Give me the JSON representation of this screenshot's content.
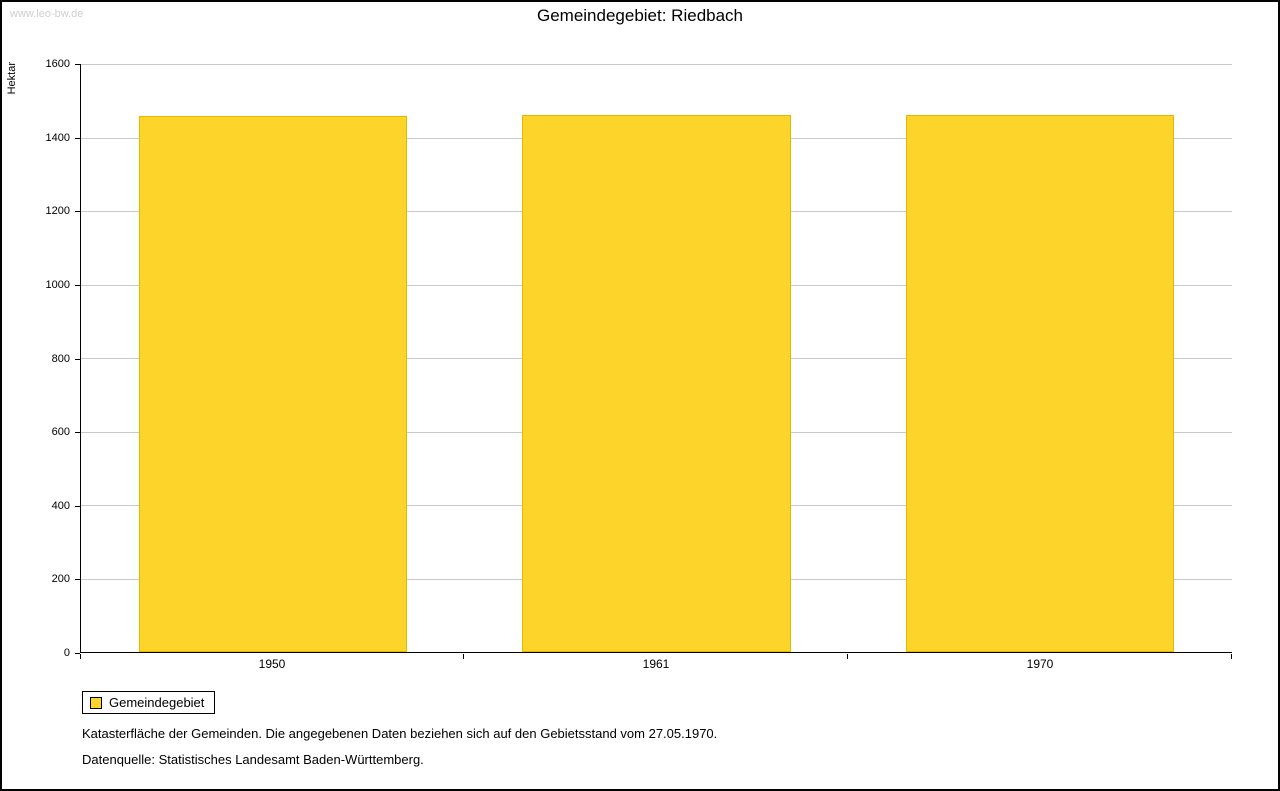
{
  "watermark": "www.leo-bw.de",
  "title": "Gemeindegebiet: Riedbach",
  "legend": {
    "label": "Gemeindegebiet"
  },
  "footer": {
    "line1": "Katasterfläche der Gemeinden. Die angegebenen Daten beziehen sich auf den Gebietsstand vom 27.05.1970.",
    "line2": "Datenquelle: Statistisches Landesamt Baden-Württemberg."
  },
  "colors": {
    "bar_fill": "#FCD42A",
    "bar_border": "#E3B900",
    "gridline": "#C9C9C9"
  },
  "chart_data": {
    "type": "bar",
    "title": "Gemeindegebiet: Riedbach",
    "xlabel": "",
    "ylabel": "Hektar",
    "categories": [
      "1950",
      "1961",
      "1970"
    ],
    "values": [
      1459,
      1462,
      1462
    ],
    "series_name": "Gemeindegebiet",
    "ylim": [
      0,
      1600
    ],
    "ytick_step": 200,
    "grid": true,
    "legend": [
      "Gemeindegebiet"
    ],
    "legend_position": "bottom-left"
  }
}
